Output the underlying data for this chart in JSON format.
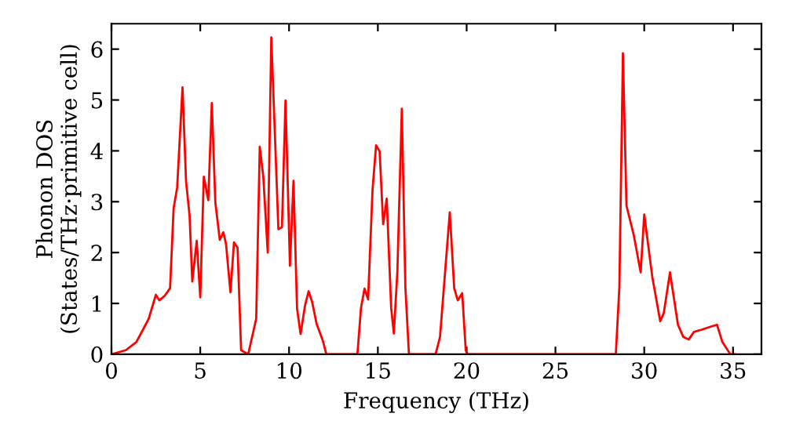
{
  "chart_data": {
    "type": "line",
    "xlabel": "Frequency (THz)",
    "ylabel": "Phonon DOS\n(States/THz·primitive cell)",
    "series": [
      {
        "color": "#ff0000",
        "x": [
          0,
          0.8,
          1.4,
          1.8,
          2.1,
          2.5,
          2.7,
          3.0,
          3.3,
          3.5,
          3.7,
          4.0,
          4.2,
          4.4,
          4.55,
          4.8,
          5.0,
          5.2,
          5.45,
          5.65,
          5.85,
          6.1,
          6.3,
          6.45,
          6.7,
          6.9,
          7.1,
          7.3,
          7.7,
          8.15,
          8.35,
          8.55,
          8.8,
          9.0,
          9.4,
          9.6,
          9.8,
          10.05,
          10.25,
          10.45,
          10.65,
          10.9,
          11.1,
          11.3,
          11.55,
          11.9,
          12.1,
          13.85,
          14.05,
          14.25,
          14.45,
          14.7,
          14.9,
          15.1,
          15.3,
          15.5,
          15.75,
          15.9,
          16.1,
          16.35,
          16.55,
          16.75,
          18.25,
          18.5,
          19.05,
          19.3,
          19.5,
          19.75,
          19.95,
          20.05,
          28.4,
          28.6,
          28.8,
          29.0,
          29.4,
          29.8,
          30.0,
          30.45,
          30.9,
          31.1,
          31.45,
          31.9,
          32.2,
          32.5,
          32.8,
          33.2,
          33.8,
          34.1,
          34.4,
          34.85,
          35.1
        ],
        "values": [
          0,
          0.08,
          0.24,
          0.5,
          0.7,
          1.17,
          1.06,
          1.15,
          1.3,
          2.87,
          3.28,
          5.25,
          3.4,
          2.72,
          1.43,
          2.23,
          1.12,
          3.49,
          3.03,
          4.94,
          2.98,
          2.25,
          2.4,
          2.17,
          1.22,
          2.2,
          2.1,
          0.08,
          0,
          0.7,
          4.08,
          3.49,
          2.0,
          6.23,
          2.46,
          2.5,
          4.99,
          1.74,
          3.41,
          0.9,
          0.4,
          0.96,
          1.24,
          1.03,
          0.6,
          0.27,
          0,
          0,
          0.91,
          1.29,
          1.08,
          3.23,
          4.11,
          3.99,
          2.56,
          3.06,
          0.91,
          0.41,
          1.63,
          4.83,
          1.32,
          0,
          0,
          0.34,
          2.79,
          1.3,
          1.06,
          1.2,
          0.08,
          0,
          0,
          1.32,
          5.92,
          2.92,
          2.36,
          1.61,
          2.75,
          1.53,
          0.65,
          0.81,
          1.61,
          0.58,
          0.34,
          0.29,
          0.44,
          0.48,
          0.55,
          0.58,
          0.24,
          0,
          0
        ]
      }
    ],
    "xlim": [
      0,
      36.6
    ],
    "ylim": [
      0,
      6.5
    ],
    "xticks": [
      0,
      5,
      10,
      15,
      20,
      25,
      30,
      35
    ],
    "yticks": [
      0,
      1,
      2,
      3,
      4,
      5,
      6
    ],
    "grid": false,
    "legend": false,
    "marker": "none",
    "line_style": "solid"
  }
}
